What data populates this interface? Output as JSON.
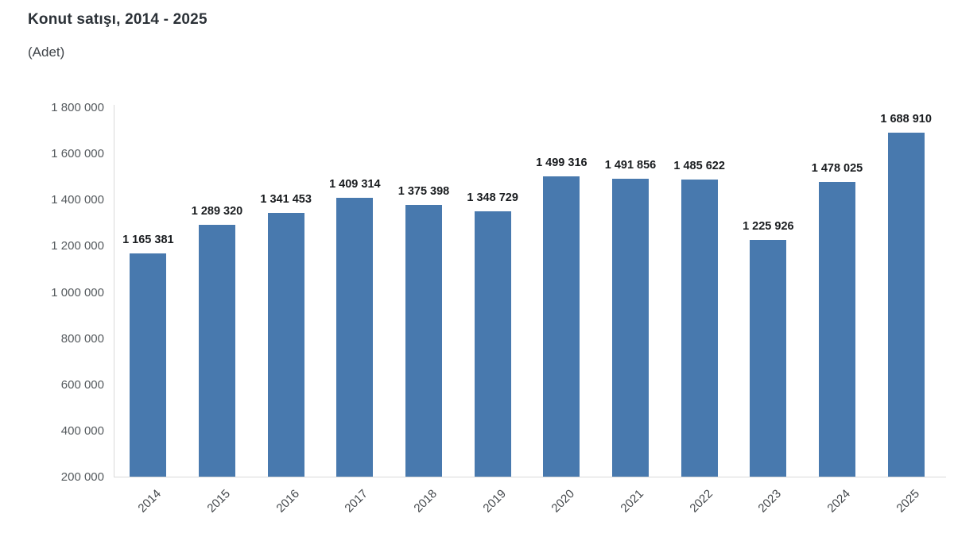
{
  "header": {
    "title": "Konut satışı, 2014 - 2025",
    "subtitle": "(Adet)"
  },
  "chart_data": {
    "type": "bar",
    "title": "Konut satışı, 2014 - 2025",
    "unit_label": "(Adet)",
    "categories": [
      "2014",
      "2015",
      "2016",
      "2017",
      "2018",
      "2019",
      "2020",
      "2021",
      "2022",
      "2023",
      "2024",
      "2025"
    ],
    "values": [
      1165381,
      1289320,
      1341453,
      1409314,
      1375398,
      1348729,
      1499316,
      1491856,
      1485622,
      1225926,
      1478025,
      1688910
    ],
    "value_labels": [
      "1 165 381",
      "1 289 320",
      "1 341 453",
      "1 409 314",
      "1 375 398",
      "1 348 729",
      "1 499 316",
      "1 491 856",
      "1 485 622",
      "1 225 926",
      "1 478 025",
      "1 688 910"
    ],
    "xlabel": "",
    "ylabel": "",
    "ylim": [
      200000,
      1800000
    ],
    "ytick_step": 200000,
    "ytick_labels": [
      "200 000",
      "400 000",
      "600 000",
      "800 000",
      "1 000 000",
      "1 200 000",
      "1 400 000",
      "1 600 000",
      "1 800 000"
    ],
    "grid": false,
    "legend_position": "none",
    "bar_color": "#4879ae",
    "axis_line_color": "#d9d9d9"
  }
}
